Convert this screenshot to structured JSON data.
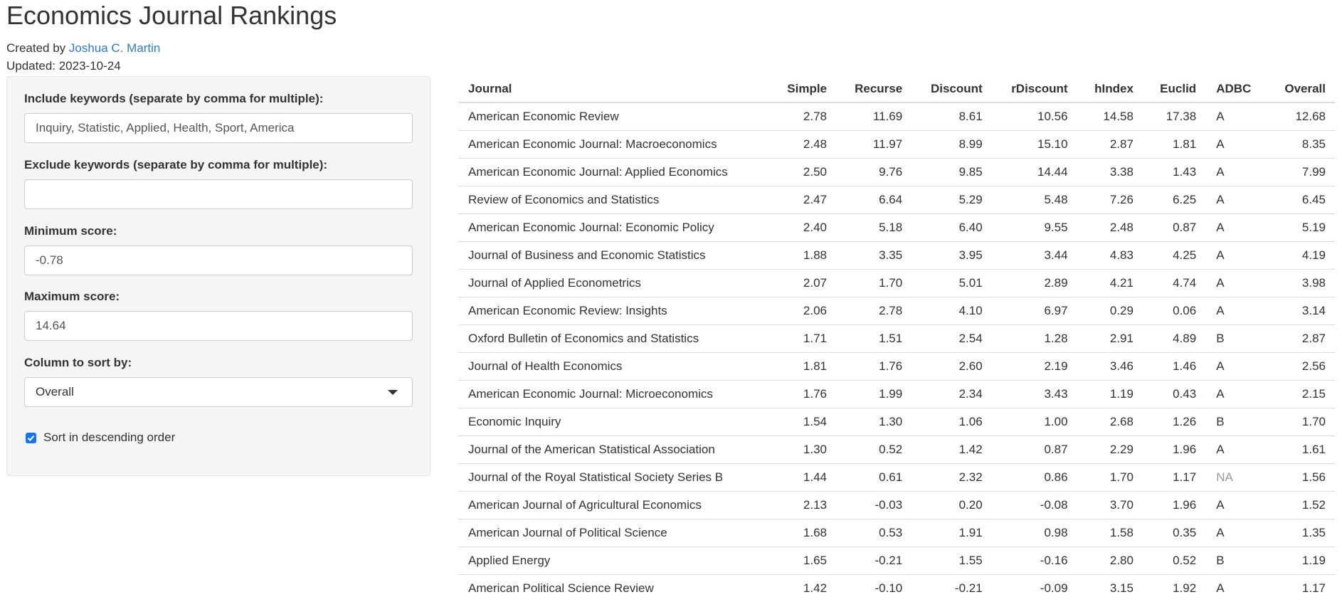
{
  "header": {
    "title": "Economics Journal Rankings",
    "created_prefix": "Created by ",
    "author": "Joshua C. Martin",
    "updated": "Updated: 2023-10-24"
  },
  "sidebar": {
    "include_label": "Include keywords (separate by comma for multiple):",
    "include_value": "Inquiry, Statistic, Applied, Health, Sport, America",
    "exclude_label": "Exclude keywords (separate by comma for multiple):",
    "exclude_value": "",
    "min_label": "Minimum score:",
    "min_value": "-0.78",
    "max_label": "Maximum score:",
    "max_value": "14.64",
    "sort_label": "Column to sort by:",
    "sort_value": "Overall",
    "descending_label": "Sort in descending order",
    "descending_checked": true,
    "checkbox_color": "#1a73e8"
  },
  "table": {
    "columns": [
      "Journal",
      "Simple",
      "Recurse",
      "Discount",
      "rDiscount",
      "hIndex",
      "Euclid",
      "ADBC",
      "Overall"
    ],
    "rows": [
      [
        "American Economic Review",
        "2.78",
        "11.69",
        "8.61",
        "10.56",
        "14.58",
        "17.38",
        "A",
        "12.68"
      ],
      [
        "American Economic Journal: Macroeconomics",
        "2.48",
        "11.97",
        "8.99",
        "15.10",
        "2.87",
        "1.81",
        "A",
        "8.35"
      ],
      [
        "American Economic Journal: Applied Economics",
        "2.50",
        "9.76",
        "9.85",
        "14.44",
        "3.38",
        "1.43",
        "A",
        "7.99"
      ],
      [
        "Review of Economics and Statistics",
        "2.47",
        "6.64",
        "5.29",
        "5.48",
        "7.26",
        "6.25",
        "A",
        "6.45"
      ],
      [
        "American Economic Journal: Economic Policy",
        "2.40",
        "5.18",
        "6.40",
        "9.55",
        "2.48",
        "0.87",
        "A",
        "5.19"
      ],
      [
        "Journal of Business and Economic Statistics",
        "1.88",
        "3.35",
        "3.95",
        "3.44",
        "4.83",
        "4.25",
        "A",
        "4.19"
      ],
      [
        "Journal of Applied Econometrics",
        "2.07",
        "1.70",
        "5.01",
        "2.89",
        "4.21",
        "4.74",
        "A",
        "3.98"
      ],
      [
        "American Economic Review: Insights",
        "2.06",
        "2.78",
        "4.10",
        "6.97",
        "0.29",
        "0.06",
        "A",
        "3.14"
      ],
      [
        "Oxford Bulletin of Economics and Statistics",
        "1.71",
        "1.51",
        "2.54",
        "1.28",
        "2.91",
        "4.89",
        "B",
        "2.87"
      ],
      [
        "Journal of Health Economics",
        "1.81",
        "1.76",
        "2.60",
        "2.19",
        "3.46",
        "1.46",
        "A",
        "2.56"
      ],
      [
        "American Economic Journal: Microeconomics",
        "1.76",
        "1.99",
        "2.34",
        "3.43",
        "1.19",
        "0.43",
        "A",
        "2.15"
      ],
      [
        "Economic Inquiry",
        "1.54",
        "1.30",
        "1.06",
        "1.00",
        "2.68",
        "1.26",
        "B",
        "1.70"
      ],
      [
        "Journal of the American Statistical Association",
        "1.30",
        "0.52",
        "1.42",
        "0.87",
        "2.29",
        "1.96",
        "A",
        "1.61"
      ],
      [
        "Journal of the Royal Statistical Society Series B",
        "1.44",
        "0.61",
        "2.32",
        "0.86",
        "1.70",
        "1.17",
        "NA",
        "1.56"
      ],
      [
        "American Journal of Agricultural Economics",
        "2.13",
        "-0.03",
        "0.20",
        "-0.08",
        "3.70",
        "1.96",
        "A",
        "1.52"
      ],
      [
        "American Journal of Political Science",
        "1.68",
        "0.53",
        "1.91",
        "0.98",
        "1.58",
        "0.35",
        "A",
        "1.35"
      ],
      [
        "Applied Energy",
        "1.65",
        "-0.21",
        "1.55",
        "-0.16",
        "2.80",
        "0.52",
        "B",
        "1.19"
      ],
      [
        "American Political Science Review",
        "1.42",
        "-0.10",
        "-0.21",
        "-0.09",
        "3.15",
        "1.92",
        "A",
        "1.17"
      ]
    ]
  }
}
